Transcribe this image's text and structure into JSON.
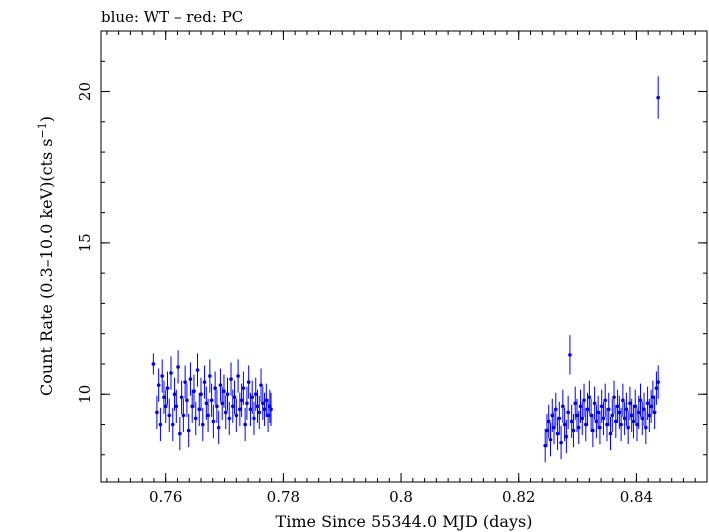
{
  "chart_data": {
    "type": "scatter",
    "title": "blue: WT – red: PC",
    "xlabel": "Time Since 55344.0 MJD (days)",
    "ylabel_main": "Count Rate (0.3–10.0 keV)(cts s",
    "ylabel_sup": "−1",
    "ylabel_end": ")",
    "xlim": [
      0.749,
      0.852
    ],
    "ylim": [
      7.1,
      22.0
    ],
    "x_ticks": [
      {
        "value": 0.76,
        "label": "0.76"
      },
      {
        "value": 0.78,
        "label": "0.78"
      },
      {
        "value": 0.8,
        "label": "0.8"
      },
      {
        "value": 0.82,
        "label": "0.82"
      },
      {
        "value": 0.84,
        "label": "0.84"
      }
    ],
    "y_ticks": [
      {
        "value": 10,
        "label": "10"
      },
      {
        "value": 15,
        "label": "15"
      },
      {
        "value": 20,
        "label": "20"
      }
    ],
    "x_minor_step": 0.002,
    "y_minor_step": 1,
    "grid": false,
    "series": [
      {
        "color": "#0000ee",
        "x": [
          0.7579,
          0.7585,
          0.7588,
          0.7591,
          0.7594,
          0.7597,
          0.76,
          0.7603,
          0.7606,
          0.7609,
          0.7612,
          0.7615,
          0.7618,
          0.7621,
          0.7624,
          0.7627,
          0.763,
          0.7633,
          0.7636,
          0.7639,
          0.7642,
          0.7645,
          0.7648,
          0.7651,
          0.7654,
          0.7657,
          0.766,
          0.7663,
          0.7666,
          0.7669,
          0.7672,
          0.7675,
          0.7678,
          0.7681,
          0.7684,
          0.7687,
          0.769,
          0.7693,
          0.7696,
          0.7699,
          0.7702,
          0.7705,
          0.7708,
          0.7711,
          0.7714,
          0.7717,
          0.772,
          0.7723,
          0.7726,
          0.7729,
          0.7732,
          0.7735,
          0.7738,
          0.7741,
          0.7744,
          0.7747,
          0.775,
          0.7753,
          0.7756,
          0.7759,
          0.7762,
          0.7765,
          0.7768,
          0.7771,
          0.7774,
          0.7777,
          0.7779,
          0.8245,
          0.8248,
          0.8251,
          0.8254,
          0.8257,
          0.826,
          0.8263,
          0.8266,
          0.8269,
          0.8272,
          0.8275,
          0.8278,
          0.8281,
          0.8284,
          0.8287,
          0.829,
          0.8293,
          0.8296,
          0.8299,
          0.8302,
          0.8305,
          0.8308,
          0.8311,
          0.8314,
          0.8317,
          0.832,
          0.8323,
          0.8326,
          0.8329,
          0.8332,
          0.8335,
          0.8338,
          0.8341,
          0.8344,
          0.8347,
          0.835,
          0.8353,
          0.8356,
          0.8359,
          0.8362,
          0.8365,
          0.8368,
          0.8371,
          0.8374,
          0.8377,
          0.838,
          0.8383,
          0.8386,
          0.8389,
          0.8392,
          0.8395,
          0.8398,
          0.8401,
          0.8404,
          0.8407,
          0.841,
          0.8413,
          0.8416,
          0.8419,
          0.8422,
          0.8425,
          0.8428,
          0.8431,
          0.8434,
          0.8437,
          0.8437
        ],
        "y": [
          11.0,
          9.4,
          10.3,
          9.0,
          10.6,
          9.9,
          9.6,
          10.2,
          9.3,
          10.7,
          9.0,
          10.0,
          9.6,
          10.9,
          8.7,
          9.9,
          9.3,
          10.4,
          9.8,
          8.8,
          10.5,
          9.6,
          10.1,
          9.2,
          10.8,
          9.5,
          10.0,
          9.0,
          10.4,
          9.7,
          9.3,
          10.6,
          9.8,
          9.1,
          10.2,
          9.6,
          8.9,
          10.3,
          9.7,
          10.1,
          9.4,
          10.0,
          9.2,
          10.5,
          9.6,
          9.9,
          9.3,
          10.6,
          9.5,
          9.8,
          10.2,
          9.0,
          9.7,
          10.4,
          9.5,
          9.9,
          9.2,
          10.0,
          9.6,
          9.4,
          10.3,
          9.7,
          9.5,
          9.8,
          9.3,
          9.6,
          9.5,
          8.3,
          8.8,
          9.1,
          8.5,
          9.3,
          8.9,
          9.5,
          8.7,
          9.2,
          8.4,
          9.6,
          9.0,
          8.6,
          9.4,
          11.3,
          9.1,
          8.8,
          9.7,
          9.3,
          8.9,
          9.6,
          9.2,
          9.8,
          9.0,
          9.5,
          9.9,
          9.3,
          8.8,
          9.7,
          9.1,
          9.4,
          8.9,
          9.6,
          9.2,
          9.8,
          9.0,
          9.5,
          8.7,
          9.3,
          9.9,
          9.1,
          9.6,
          9.4,
          9.0,
          9.8,
          9.2,
          9.5,
          8.9,
          9.7,
          9.3,
          9.1,
          9.6,
          9.0,
          9.4,
          9.8,
          9.2,
          9.5,
          8.9,
          9.7,
          9.3,
          9.6,
          9.9,
          9.4,
          10.2,
          10.4,
          19.8
        ],
        "err": [
          0.35,
          0.55,
          0.55,
          0.55,
          0.55,
          0.55,
          0.55,
          0.55,
          0.55,
          0.55,
          0.55,
          0.55,
          0.55,
          0.55,
          0.55,
          0.55,
          0.55,
          0.55,
          0.55,
          0.55,
          0.55,
          0.55,
          0.55,
          0.55,
          0.55,
          0.55,
          0.55,
          0.55,
          0.55,
          0.55,
          0.55,
          0.55,
          0.55,
          0.55,
          0.55,
          0.55,
          0.55,
          0.55,
          0.55,
          0.55,
          0.55,
          0.55,
          0.55,
          0.55,
          0.55,
          0.55,
          0.55,
          0.55,
          0.55,
          0.55,
          0.55,
          0.55,
          0.55,
          0.55,
          0.55,
          0.55,
          0.55,
          0.55,
          0.55,
          0.55,
          0.55,
          0.55,
          0.55,
          0.55,
          0.55,
          0.55,
          0.55,
          0.55,
          0.55,
          0.55,
          0.55,
          0.55,
          0.55,
          0.55,
          0.55,
          0.55,
          0.55,
          0.55,
          0.55,
          0.55,
          0.55,
          0.65,
          0.55,
          0.55,
          0.55,
          0.55,
          0.55,
          0.55,
          0.55,
          0.55,
          0.55,
          0.55,
          0.55,
          0.55,
          0.55,
          0.55,
          0.55,
          0.55,
          0.55,
          0.55,
          0.55,
          0.55,
          0.55,
          0.55,
          0.55,
          0.55,
          0.55,
          0.55,
          0.55,
          0.55,
          0.55,
          0.55,
          0.55,
          0.55,
          0.55,
          0.55,
          0.55,
          0.55,
          0.55,
          0.55,
          0.55,
          0.55,
          0.55,
          0.55,
          0.55,
          0.55,
          0.55,
          0.55,
          0.55,
          0.55,
          0.55,
          0.55,
          0.7
        ]
      }
    ]
  }
}
